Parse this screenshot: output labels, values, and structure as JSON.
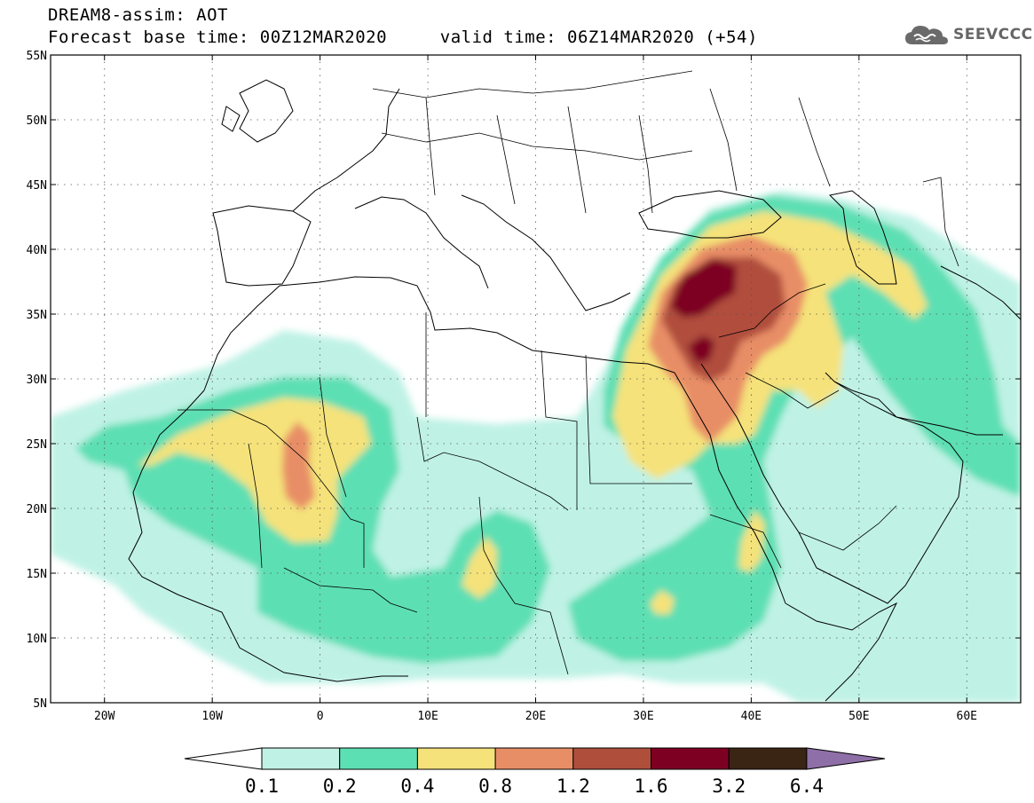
{
  "header": {
    "line1": "DREAM8-assim: AOT",
    "line2_left": "Forecast base time: 00Z12MAR2020",
    "line2_right": "valid time: 06Z14MAR2020 (+54)"
  },
  "logo": {
    "icon": "cloud-icon",
    "text": "SEEVCCC"
  },
  "map": {
    "lon_range": [
      -25,
      65
    ],
    "lat_range": [
      5,
      55
    ],
    "lon_ticks": [
      {
        "value": -20,
        "label": "20W"
      },
      {
        "value": -10,
        "label": "10W"
      },
      {
        "value": 0,
        "label": "0"
      },
      {
        "value": 10,
        "label": "10E"
      },
      {
        "value": 20,
        "label": "20E"
      },
      {
        "value": 30,
        "label": "30E"
      },
      {
        "value": 40,
        "label": "40E"
      },
      {
        "value": 50,
        "label": "50E"
      },
      {
        "value": 60,
        "label": "60E"
      }
    ],
    "lat_ticks": [
      {
        "value": 5,
        "label": "5N"
      },
      {
        "value": 10,
        "label": "10N"
      },
      {
        "value": 15,
        "label": "15N"
      },
      {
        "value": 20,
        "label": "20N"
      },
      {
        "value": 25,
        "label": "25N"
      },
      {
        "value": 30,
        "label": "30N"
      },
      {
        "value": 35,
        "label": "35N"
      },
      {
        "value": 40,
        "label": "40N"
      },
      {
        "value": 45,
        "label": "45N"
      },
      {
        "value": 50,
        "label": "50N"
      },
      {
        "value": 55,
        "label": "55N"
      }
    ],
    "gridlines": "dotted"
  },
  "colorbar": {
    "labels": [
      "0.1",
      "0.2",
      "0.4",
      "0.8",
      "1.2",
      "1.6",
      "3.2",
      "6.4"
    ],
    "colors": [
      "#ffffff",
      "#bff2e5",
      "#5ddfb4",
      "#f5e27a",
      "#e88e66",
      "#b04e3c",
      "#7d0023",
      "#3a2414",
      "#8f6fa8"
    ]
  }
}
